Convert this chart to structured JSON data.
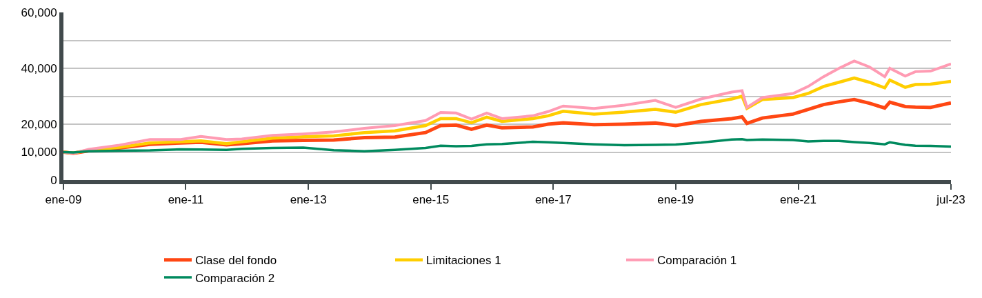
{
  "chart_data": {
    "type": "line",
    "x": [
      "2009-01",
      "2009-03",
      "2009-06",
      "2009-12",
      "2010-06",
      "2010-12",
      "2011-04",
      "2011-09",
      "2011-12",
      "2012-06",
      "2012-12",
      "2013-06",
      "2013-12",
      "2014-06",
      "2014-12",
      "2015-03",
      "2015-06",
      "2015-09",
      "2015-12",
      "2016-03",
      "2016-09",
      "2016-12",
      "2017-03",
      "2017-09",
      "2018-03",
      "2018-09",
      "2019-01",
      "2019-06",
      "2019-12",
      "2020-02",
      "2020-03",
      "2020-06",
      "2020-12",
      "2021-03",
      "2021-06",
      "2021-09",
      "2021-12",
      "2022-03",
      "2022-06",
      "2022-07",
      "2022-10",
      "2022-12",
      "2023-03",
      "2023-07"
    ],
    "series": [
      {
        "name": "Clase del fondo",
        "color": "#ff4713",
        "values": [
          10000,
          9600,
          10500,
          11500,
          12800,
          13300,
          13500,
          12600,
          13000,
          14000,
          14200,
          14300,
          15200,
          15400,
          17000,
          19500,
          19700,
          18200,
          19700,
          18700,
          19000,
          20000,
          20500,
          19800,
          20000,
          20400,
          19500,
          21000,
          22000,
          22600,
          20300,
          22200,
          23600,
          25300,
          27000,
          28000,
          28800,
          27500,
          25800,
          27900,
          26300,
          26100,
          26000,
          27600
        ]
      },
      {
        "name": "Limitaciones 1",
        "color": "#ffce00",
        "values": [
          10000,
          9700,
          10700,
          11700,
          13300,
          13700,
          14000,
          13000,
          13700,
          15000,
          15500,
          15800,
          17000,
          17600,
          19500,
          22000,
          22000,
          20500,
          22500,
          21000,
          22000,
          23000,
          24600,
          23600,
          24300,
          25300,
          24300,
          27000,
          29000,
          30000,
          25700,
          28800,
          29500,
          31000,
          33500,
          35000,
          36500,
          35000,
          33000,
          35800,
          33200,
          34200,
          34300,
          35300
        ]
      },
      {
        "name": "Comparación 1",
        "color": "#ff9bb3",
        "values": [
          10000,
          9600,
          11000,
          12500,
          14500,
          14500,
          15600,
          14500,
          14700,
          16000,
          16500,
          17200,
          18500,
          19500,
          21300,
          24200,
          24000,
          21800,
          24000,
          22000,
          23000,
          24500,
          26500,
          25600,
          26800,
          28500,
          26000,
          29000,
          31500,
          32000,
          26000,
          29500,
          31000,
          33500,
          37000,
          40000,
          42600,
          40500,
          37000,
          40000,
          37200,
          38800,
          39000,
          41600
        ]
      },
      {
        "name": "Comparación 2",
        "color": "#008a5e",
        "values": [
          10000,
          9900,
          10300,
          10500,
          10600,
          11000,
          10900,
          10800,
          11200,
          11500,
          11600,
          10700,
          10300,
          10800,
          11500,
          12300,
          12100,
          12200,
          12800,
          12900,
          13700,
          13500,
          13300,
          12800,
          12500,
          12600,
          12700,
          13400,
          14500,
          14600,
          14300,
          14500,
          14300,
          13800,
          14000,
          14000,
          13600,
          13300,
          12800,
          13500,
          12600,
          12300,
          12200,
          12000
        ]
      }
    ],
    "xlim": [
      "2009-01",
      "2023-07"
    ],
    "xticks": [
      {
        "value": "2009-01",
        "label": "ene-09"
      },
      {
        "value": "2011-01",
        "label": "ene-11"
      },
      {
        "value": "2013-01",
        "label": "ene-13"
      },
      {
        "value": "2015-01",
        "label": "ene-15"
      },
      {
        "value": "2017-01",
        "label": "ene-17"
      },
      {
        "value": "2019-01",
        "label": "ene-19"
      },
      {
        "value": "2021-01",
        "label": "ene-21"
      },
      {
        "value": "2023-07",
        "label": "jul-23"
      }
    ],
    "ylim": [
      0,
      60000
    ],
    "yticks": [
      {
        "value": 0,
        "label": "0"
      },
      {
        "value": 10000,
        "label": "10,000"
      },
      {
        "value": 20000,
        "label": "20,000"
      },
      {
        "value": 30000,
        "label": null
      },
      {
        "value": 40000,
        "label": "40,000"
      },
      {
        "value": 50000,
        "label": null
      },
      {
        "value": 60000,
        "label": "60,000"
      }
    ],
    "grid": "y",
    "legend": "bottom",
    "line_style": "solid",
    "marker": "none"
  }
}
